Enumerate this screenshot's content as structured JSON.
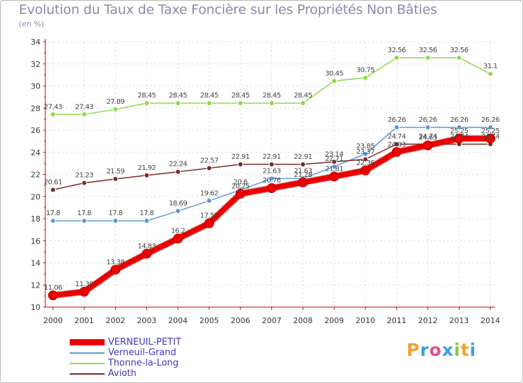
{
  "chart_data": {
    "type": "line",
    "title": "Evolution du Taux de Taxe Foncière sur les Propriétés Non Bâties",
    "unit": "(en %)",
    "x": [
      "2000",
      "2001",
      "2002",
      "2003",
      "2004",
      "2005",
      "2006",
      "2007",
      "2008",
      "2009",
      "2010",
      "2011",
      "2012",
      "2013",
      "2014"
    ],
    "ylim": [
      10,
      34
    ],
    "yticks": [
      10,
      12,
      14,
      16,
      18,
      20,
      22,
      24,
      26,
      28,
      30,
      32,
      34
    ],
    "grid": true,
    "legend_position": "bottom-left",
    "series": [
      {
        "name": "Thonne-la-Long",
        "color": "#8fd94a",
        "values": [
          27.43,
          27.43,
          27.89,
          28.45,
          28.45,
          28.45,
          28.45,
          28.45,
          28.45,
          30.45,
          30.75,
          32.56,
          32.56,
          32.56,
          31.1
        ],
        "labels": [
          "27.43",
          "27.43",
          "27.89",
          "28.45",
          "28.45",
          "28.45",
          "28.45",
          "28.45",
          "28.45",
          "30.45",
          "30.75",
          "32.56",
          "32.56",
          "32.56",
          "31.1"
        ]
      },
      {
        "name": "Verneuil-Grand",
        "color": "#5a9ad6",
        "values": [
          17.8,
          17.8,
          17.8,
          17.8,
          18.69,
          19.62,
          20.6,
          21.63,
          21.63,
          22.71,
          23.85,
          26.26,
          26.26,
          26.26,
          26.26
        ],
        "labels": [
          "17.8",
          "17.8",
          "17.8",
          "17.8",
          "18.69",
          "19.62",
          "20.6",
          "21.63",
          "21.63",
          "22.71",
          "23.85",
          "26.26",
          "26.26",
          "26.26",
          "26.26"
        ]
      },
      {
        "name": "Avioth",
        "color": "#7a2828",
        "values": [
          20.61,
          21.23,
          21.59,
          21.92,
          22.24,
          22.57,
          22.91,
          22.91,
          22.91,
          23.14,
          23.37,
          24.74,
          24.74,
          24.74,
          24.74
        ],
        "labels": [
          "20.61",
          "21.23",
          "21.59",
          "21.92",
          "22.24",
          "22.57",
          "22.91",
          "22.91",
          "22.91",
          "23.14",
          "23.37",
          "24.74",
          "24.74",
          "24.74",
          "24.74"
        ]
      },
      {
        "name": "VERNEUIL-PETIT",
        "color": "#ee0000",
        "values": [
          11.06,
          11.39,
          13.38,
          14.83,
          16.2,
          17.58,
          20.25,
          20.76,
          21.28,
          21.81,
          22.36,
          24.03,
          24.63,
          25.25,
          25.25
        ],
        "labels": [
          "11.06",
          "11.39",
          "13.38",
          "14.83",
          "16.2",
          "17.58",
          "20.25",
          "20.76",
          "21.28",
          "21.81",
          "22.36",
          "24.03",
          "24.63",
          "25.25",
          "25.25"
        ]
      }
    ],
    "legend": [
      "VERNEUIL-PETIT",
      "Verneuil-Grand",
      "Thonne-la-Long",
      "Avioth"
    ]
  },
  "brand": {
    "name": "Proxiti",
    "letters": [
      "P",
      "r",
      "o",
      "x",
      "i",
      "t",
      "i"
    ],
    "colors": [
      "#f0a030",
      "#3aa0e0",
      "#e84c8c",
      "#3aa0e0",
      "#8cc63e",
      "#f0a030",
      "#3aa0e0"
    ]
  }
}
